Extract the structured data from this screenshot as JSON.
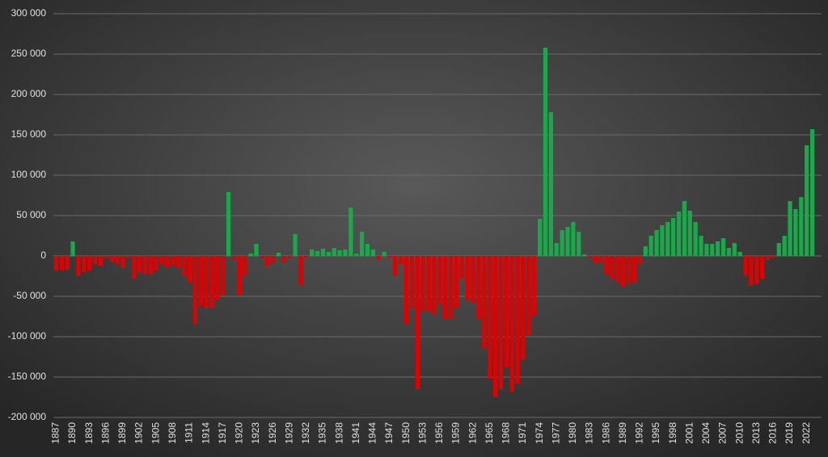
{
  "chart_data": {
    "type": "bar",
    "categories": [
      "1887",
      null,
      null,
      "1890",
      null,
      null,
      "1893",
      null,
      null,
      "1896",
      null,
      null,
      "1899",
      null,
      null,
      "1902",
      null,
      null,
      "1905",
      null,
      null,
      "1908",
      null,
      null,
      "1911",
      null,
      null,
      "1914",
      null,
      null,
      "1917",
      null,
      null,
      "1920",
      null,
      null,
      "1923",
      null,
      null,
      "1926",
      null,
      null,
      "1929",
      null,
      null,
      "1932",
      null,
      null,
      "1935",
      null,
      null,
      "1938",
      null,
      null,
      "1941",
      null,
      null,
      "1944",
      null,
      null,
      "1947",
      null,
      null,
      "1950",
      null,
      null,
      "1953",
      null,
      null,
      "1956",
      null,
      null,
      "1959",
      null,
      null,
      "1962",
      null,
      null,
      "1965",
      null,
      null,
      "1968",
      null,
      null,
      "1971",
      null,
      null,
      "1974",
      null,
      null,
      "1977",
      null,
      null,
      "1980",
      null,
      null,
      "1983",
      null,
      null,
      "1986",
      null,
      null,
      "1989",
      null,
      null,
      "1992",
      null,
      null,
      "1995",
      null,
      null,
      "1998",
      null,
      null,
      "2001",
      null,
      null,
      "2004",
      null,
      null,
      "2007",
      null,
      null,
      "2010",
      null,
      null,
      "2013",
      null,
      null,
      "2016",
      null,
      null,
      "2019",
      null,
      null,
      "2022",
      null
    ],
    "values": [
      -18000,
      -18000,
      -17000,
      18000,
      -25000,
      -20000,
      -18000,
      -10000,
      -12000,
      -3000,
      -7000,
      -10000,
      -15000,
      -3000,
      -28000,
      -20000,
      -23000,
      -22000,
      -18000,
      -10000,
      -15000,
      -12000,
      -15000,
      -25000,
      -32000,
      -85000,
      -62000,
      -65000,
      -65000,
      -55000,
      -48000,
      79000,
      -5000,
      -48000,
      -25000,
      3000,
      15000,
      -3000,
      -12000,
      -8000,
      4000,
      -8000,
      -3000,
      27000,
      -36000,
      -2000,
      8000,
      6000,
      9000,
      5000,
      10000,
      7000,
      8000,
      60000,
      3000,
      30000,
      15000,
      8000,
      -5000,
      5000,
      -2000,
      -25000,
      -10000,
      -85000,
      -65000,
      -165000,
      -68000,
      -68000,
      -72000,
      -60000,
      -78000,
      -78000,
      -65000,
      -28000,
      -55000,
      -58000,
      -78000,
      -115000,
      -152000,
      -175000,
      -165000,
      -138000,
      -168000,
      -158000,
      -128000,
      -98000,
      -75000,
      46000,
      258000,
      178000,
      16000,
      32000,
      36000,
      42000,
      30000,
      2000,
      -3000,
      -8000,
      -8000,
      -22000,
      -28000,
      -33000,
      -38000,
      -35000,
      -33000,
      -10000,
      12000,
      25000,
      32000,
      38000,
      42000,
      47000,
      55000,
      68000,
      56000,
      42000,
      25000,
      15000,
      15000,
      18000,
      22000,
      10000,
      16000,
      5000,
      -25000,
      -37000,
      -35000,
      -28000,
      -5000,
      -2000,
      16000,
      25000,
      68000,
      58000,
      73000,
      137000,
      157000
    ],
    "positive_color": "#1aa84a",
    "negative_color": "#e00000",
    "ylim": [
      -200000,
      300000
    ],
    "yticks": [
      {
        "value": -200000,
        "label": "-200 000"
      },
      {
        "value": -150000,
        "label": "-150 000"
      },
      {
        "value": -100000,
        "label": "-100 000"
      },
      {
        "value": -50000,
        "label": "-50 000"
      },
      0,
      {
        "value": 50000,
        "label": "50 000"
      },
      {
        "value": 100000,
        "label": "100 000"
      },
      {
        "value": 150000,
        "label": "150 000"
      },
      {
        "value": 200000,
        "label": "200 000"
      },
      {
        "value": 250000,
        "label": "250 000"
      },
      {
        "value": 300000,
        "label": "300 000"
      }
    ],
    "grid": true
  }
}
